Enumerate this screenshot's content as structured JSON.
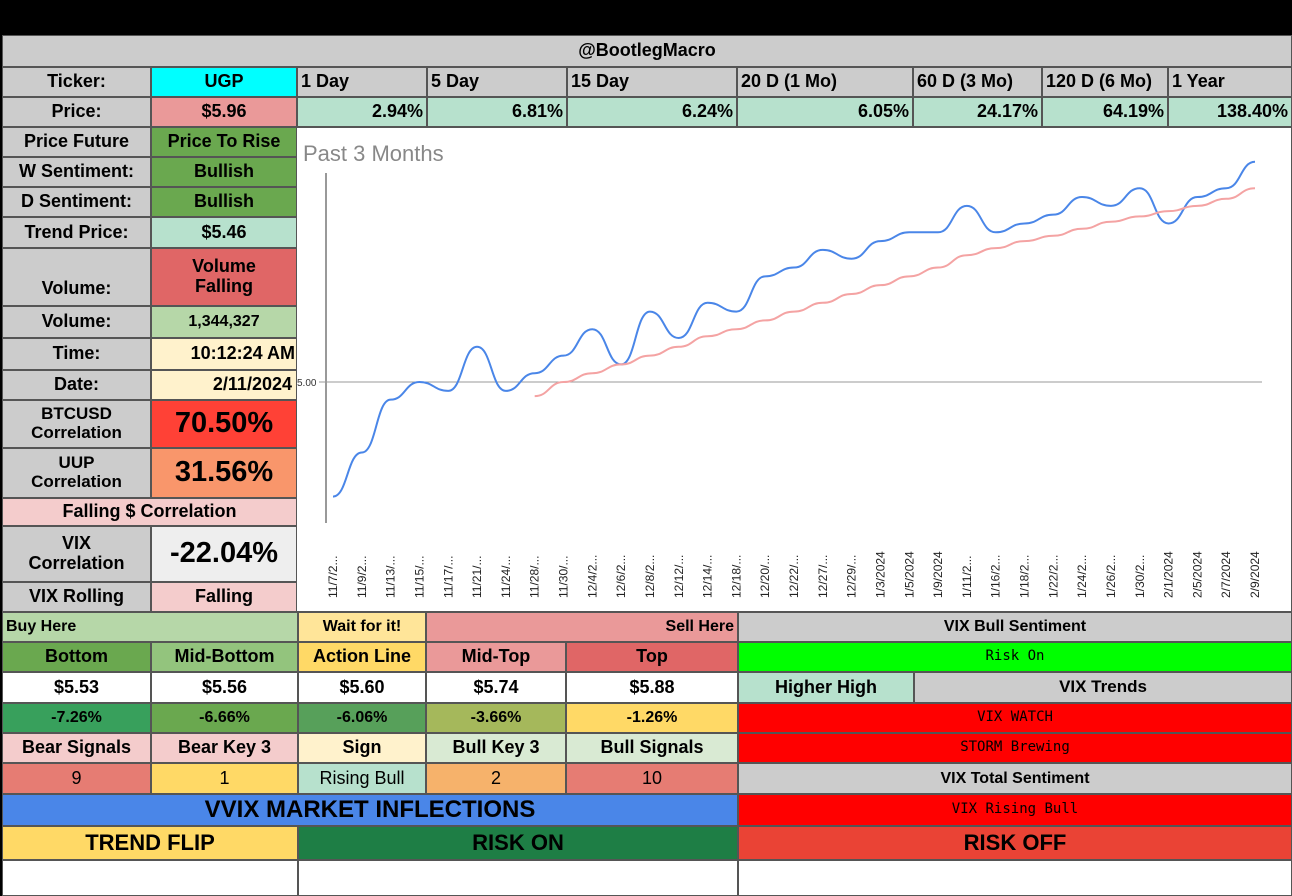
{
  "header": {
    "title": "@BootlegMacro"
  },
  "ticker": {
    "label": "Ticker:",
    "value": "UGP"
  },
  "periods": [
    "1 Day",
    "5 Day",
    "15 Day",
    "20 D (1 Mo)",
    "60 D (3 Mo)",
    "120 D (6 Mo)",
    "1 Year"
  ],
  "price": {
    "label": "Price:",
    "value": "$5.96"
  },
  "returns": [
    "2.94%",
    "6.81%",
    "6.24%",
    "6.05%",
    "24.17%",
    "64.19%",
    "138.40%"
  ],
  "info": {
    "price_future_label": "Price Future",
    "price_future": "Price To Rise",
    "w_sent_label": "W Sentiment:",
    "w_sent": "Bullish",
    "d_sent_label": "D Sentiment:",
    "d_sent": "Bullish",
    "trend_price_label": "Trend Price:",
    "trend_price": "$5.46",
    "volume_trend_label": "Volume:",
    "volume_trend": "Volume Falling",
    "volume_label": "Volume:",
    "volume": "1,344,327",
    "time_label": "Time:",
    "time": "10:12:24 AM",
    "date_label": "Date:",
    "date": "2/11/2024",
    "btc_label": "BTCUSD Correlation",
    "btc": "70.50%",
    "uup_label": "UUP Correlation",
    "uup": "31.56%",
    "falling_corr": "Falling $ Correlation",
    "vix_corr_label": "VIX Correlation",
    "vix_corr": "-22.04%",
    "vix_rolling_label": "VIX Rolling",
    "vix_rolling": "Falling"
  },
  "levels": {
    "buy_here": "Buy Here",
    "wait": "Wait for it!",
    "sell_here": "Sell Here",
    "names": [
      "Bottom",
      "Mid-Bottom",
      "Action Line",
      "Mid-Top",
      "Top"
    ],
    "prices": [
      "$5.53",
      "$5.56",
      "$5.60",
      "$5.74",
      "$5.88"
    ],
    "pcts": [
      "-7.26%",
      "-6.66%",
      "-6.06%",
      "-3.66%",
      "-1.26%"
    ]
  },
  "signals": {
    "headers": [
      "Bear Signals",
      "Bear Key 3",
      "Sign",
      "Bull Key 3",
      "Bull Signals"
    ],
    "values": [
      "9",
      "1",
      "Rising Bull",
      "2",
      "10"
    ]
  },
  "vix": {
    "bull_sentiment_label": "VIX Bull Sentiment",
    "risk_state": "Risk On",
    "higher_high": "Higher High",
    "trends_label": "VIX Trends",
    "watch": "VIX WATCH",
    "storm": "STORM Brewing",
    "total_label": "VIX Total Sentiment",
    "rising_bull": "VIX Rising Bull"
  },
  "vvix": {
    "title": "VVIX MARKET INFLECTIONS",
    "trend_flip": "TREND FLIP",
    "risk_on": "RISK ON",
    "risk_off": "RISK OFF"
  },
  "colors": {
    "gray": "#cccccc",
    "cyan": "#00ffff",
    "pink": "#ea9999",
    "mint": "#b7e1cd",
    "green": "#6aa84f",
    "red": "#ff4136",
    "vvix_blue": "#4a86e8",
    "yellow": "#ffd966",
    "dark_green": "#1e7e45"
  },
  "chart_data": {
    "type": "line",
    "title": "Past 3 Months",
    "reference_label": "5.00",
    "reference_value": 5.0,
    "ylim": [
      4.2,
      6.3
    ],
    "x": [
      "11/7/2...",
      "11/9/2...",
      "11/13/...",
      "11/15/...",
      "11/17/...",
      "11/21/...",
      "11/24/...",
      "11/28/...",
      "11/30/...",
      "12/4/2...",
      "12/6/2...",
      "12/8/2...",
      "12/12/...",
      "12/14/...",
      "12/18/...",
      "12/20/...",
      "12/22/...",
      "12/27/...",
      "12/29/...",
      "1/3/2024",
      "1/5/2024",
      "1/9/2024",
      "1/11/2...",
      "1/16/2...",
      "1/18/2...",
      "1/22/2...",
      "1/24/2...",
      "1/26/2...",
      "1/30/2...",
      "2/1/2024",
      "2/5/2024",
      "2/7/2024",
      "2/9/2024"
    ],
    "series": [
      {
        "values": [
          4.35,
          4.6,
          4.9,
          5.0,
          4.95,
          5.2,
          4.95,
          5.05,
          5.15,
          5.3,
          5.1,
          5.4,
          5.25,
          5.45,
          5.4,
          5.6,
          5.65,
          5.75,
          5.7,
          5.8,
          5.85,
          5.85,
          6.0,
          5.85,
          5.9,
          5.95,
          6.05,
          6.0,
          6.1,
          5.9,
          6.05,
          6.1,
          6.25
        ],
        "color": "#4a86e8"
      },
      {
        "values": [
          null,
          null,
          null,
          null,
          null,
          null,
          null,
          4.92,
          5.0,
          5.05,
          5.1,
          5.15,
          5.2,
          5.26,
          5.3,
          5.35,
          5.4,
          5.45,
          5.5,
          5.55,
          5.6,
          5.65,
          5.72,
          5.76,
          5.8,
          5.83,
          5.87,
          5.91,
          5.94,
          5.97,
          6.0,
          6.04,
          6.1
        ],
        "color": "#f4a3a3"
      }
    ]
  }
}
